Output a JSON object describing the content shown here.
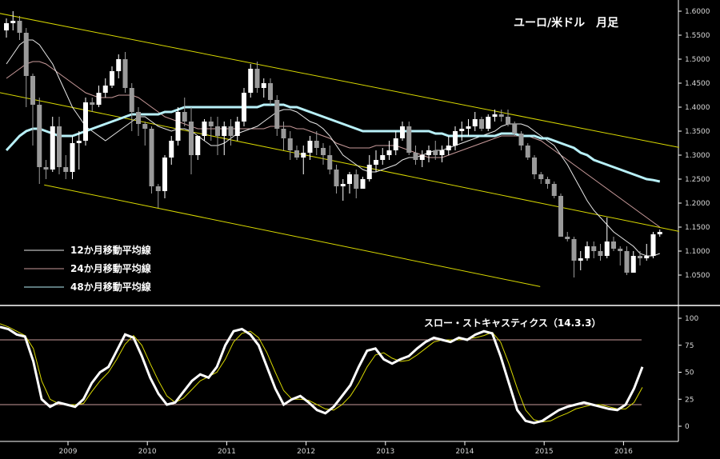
{
  "chart_data": [
    {
      "type": "candlestick",
      "title": "ユーロ/米ドル　月足",
      "ylim": [
        1.02,
        1.61
      ],
      "y_ticks": [
        "1.6000",
        "1.5500",
        "1.5000",
        "1.4500",
        "1.4000",
        "1.3500",
        "1.3000",
        "1.2500",
        "1.2000",
        "1.1500",
        "1.1000",
        "1.0500"
      ],
      "x_ticks": [
        "2009",
        "2010",
        "2011",
        "2012",
        "2013",
        "2014",
        "2015",
        "2016"
      ],
      "legend": [
        "12か月移動平均線",
        "24か月移動平均線",
        "48か月移動平均線"
      ],
      "colors": {
        "bull": "#ffffff",
        "bear": "#9a9a9a",
        "ma12": "#e8e8e8",
        "ma24": "#c89a9a",
        "ma48": "#b8f0f8",
        "channel": "#d8d800"
      },
      "channel_lines": [
        {
          "x1": 2008.0,
          "y1": 1.6,
          "x2": 2016.7,
          "y2": 1.316
        },
        {
          "x1": 2008.0,
          "y1": 1.435,
          "x2": 2016.7,
          "y2": 1.141
        },
        {
          "x1": 2008.7,
          "y1": 1.238,
          "x2": 2014.95,
          "y2": 1.026
        }
      ],
      "ohlc": [
        [
          1.56,
          1.585,
          1.545,
          1.575
        ],
        [
          1.575,
          1.6,
          1.56,
          1.58
        ],
        [
          1.58,
          1.59,
          1.54,
          1.555
        ],
        [
          1.555,
          1.565,
          1.4,
          1.465
        ],
        [
          1.465,
          1.47,
          1.32,
          1.405
        ],
        [
          1.405,
          1.42,
          1.24,
          1.275
        ],
        [
          1.275,
          1.29,
          1.25,
          1.27
        ],
        [
          1.27,
          1.38,
          1.265,
          1.36
        ],
        [
          1.36,
          1.38,
          1.26,
          1.275
        ],
        [
          1.275,
          1.3,
          1.25,
          1.265
        ],
        [
          1.265,
          1.34,
          1.25,
          1.325
        ],
        [
          1.325,
          1.35,
          1.27,
          1.33
        ],
        [
          1.33,
          1.42,
          1.32,
          1.41
        ],
        [
          1.41,
          1.42,
          1.39,
          1.405
        ],
        [
          1.405,
          1.445,
          1.4,
          1.43
        ],
        [
          1.43,
          1.46,
          1.42,
          1.445
        ],
        [
          1.445,
          1.485,
          1.44,
          1.475
        ],
        [
          1.475,
          1.51,
          1.46,
          1.5
        ],
        [
          1.5,
          1.515,
          1.43,
          1.44
        ],
        [
          1.44,
          1.45,
          1.35,
          1.39
        ],
        [
          1.39,
          1.4,
          1.34,
          1.365
        ],
        [
          1.365,
          1.37,
          1.32,
          1.355
        ],
        [
          1.355,
          1.36,
          1.22,
          1.235
        ],
        [
          1.235,
          1.24,
          1.19,
          1.225
        ],
        [
          1.225,
          1.3,
          1.21,
          1.295
        ],
        [
          1.295,
          1.34,
          1.28,
          1.33
        ],
        [
          1.33,
          1.4,
          1.32,
          1.39
        ],
        [
          1.39,
          1.42,
          1.36,
          1.37
        ],
        [
          1.37,
          1.4,
          1.26,
          1.3
        ],
        [
          1.3,
          1.34,
          1.29,
          1.34
        ],
        [
          1.34,
          1.375,
          1.33,
          1.37
        ],
        [
          1.37,
          1.38,
          1.33,
          1.36
        ],
        [
          1.36,
          1.38,
          1.3,
          1.34
        ],
        [
          1.34,
          1.37,
          1.3,
          1.36
        ],
        [
          1.36,
          1.375,
          1.32,
          1.34
        ],
        [
          1.34,
          1.38,
          1.33,
          1.37
        ],
        [
          1.37,
          1.44,
          1.36,
          1.43
        ],
        [
          1.43,
          1.49,
          1.42,
          1.48
        ],
        [
          1.48,
          1.495,
          1.43,
          1.44
        ],
        [
          1.44,
          1.46,
          1.42,
          1.45
        ],
        [
          1.45,
          1.46,
          1.405,
          1.415
        ],
        [
          1.415,
          1.425,
          1.34,
          1.355
        ],
        [
          1.355,
          1.37,
          1.31,
          1.335
        ],
        [
          1.335,
          1.35,
          1.29,
          1.31
        ],
        [
          1.31,
          1.32,
          1.29,
          1.295
        ],
        [
          1.295,
          1.32,
          1.26,
          1.305
        ],
        [
          1.305,
          1.34,
          1.29,
          1.33
        ],
        [
          1.33,
          1.35,
          1.3,
          1.315
        ],
        [
          1.315,
          1.325,
          1.28,
          1.3
        ],
        [
          1.3,
          1.32,
          1.26,
          1.27
        ],
        [
          1.27,
          1.28,
          1.22,
          1.235
        ],
        [
          1.235,
          1.25,
          1.205,
          1.24
        ],
        [
          1.24,
          1.265,
          1.22,
          1.26
        ],
        [
          1.26,
          1.27,
          1.21,
          1.23
        ],
        [
          1.23,
          1.255,
          1.23,
          1.25
        ],
        [
          1.25,
          1.3,
          1.245,
          1.28
        ],
        [
          1.28,
          1.31,
          1.265,
          1.29
        ],
        [
          1.29,
          1.315,
          1.28,
          1.3
        ],
        [
          1.3,
          1.33,
          1.29,
          1.31
        ],
        [
          1.31,
          1.35,
          1.3,
          1.335
        ],
        [
          1.335,
          1.37,
          1.33,
          1.36
        ],
        [
          1.36,
          1.37,
          1.3,
          1.305
        ],
        [
          1.305,
          1.32,
          1.28,
          1.29
        ],
        [
          1.29,
          1.31,
          1.275,
          1.3
        ],
        [
          1.3,
          1.32,
          1.285,
          1.31
        ],
        [
          1.31,
          1.33,
          1.29,
          1.3
        ],
        [
          1.3,
          1.32,
          1.285,
          1.31
        ],
        [
          1.31,
          1.34,
          1.3,
          1.32
        ],
        [
          1.32,
          1.36,
          1.31,
          1.35
        ],
        [
          1.35,
          1.37,
          1.33,
          1.355
        ],
        [
          1.355,
          1.375,
          1.34,
          1.36
        ],
        [
          1.36,
          1.39,
          1.35,
          1.375
        ],
        [
          1.375,
          1.38,
          1.35,
          1.355
        ],
        [
          1.355,
          1.385,
          1.35,
          1.38
        ],
        [
          1.38,
          1.395,
          1.37,
          1.385
        ],
        [
          1.385,
          1.395,
          1.37,
          1.38
        ],
        [
          1.38,
          1.395,
          1.36,
          1.365
        ],
        [
          1.365,
          1.37,
          1.34,
          1.345
        ],
        [
          1.345,
          1.35,
          1.31,
          1.32
        ],
        [
          1.32,
          1.325,
          1.29,
          1.295
        ],
        [
          1.295,
          1.3,
          1.25,
          1.26
        ],
        [
          1.26,
          1.265,
          1.24,
          1.25
        ],
        [
          1.25,
          1.255,
          1.23,
          1.24
        ],
        [
          1.24,
          1.245,
          1.21,
          1.215
        ],
        [
          1.215,
          1.22,
          1.13,
          1.13
        ],
        [
          1.13,
          1.14,
          1.12,
          1.125
        ],
        [
          1.125,
          1.13,
          1.045,
          1.08
        ],
        [
          1.08,
          1.1,
          1.06,
          1.085
        ],
        [
          1.085,
          1.12,
          1.08,
          1.11
        ],
        [
          1.11,
          1.12,
          1.085,
          1.1
        ],
        [
          1.1,
          1.115,
          1.08,
          1.09
        ],
        [
          1.09,
          1.17,
          1.085,
          1.12
        ],
        [
          1.12,
          1.13,
          1.1,
          1.105
        ],
        [
          1.105,
          1.11,
          1.07,
          1.1
        ],
        [
          1.1,
          1.11,
          1.05,
          1.055
        ],
        [
          1.055,
          1.1,
          1.055,
          1.09
        ],
        [
          1.09,
          1.1,
          1.07,
          1.085
        ],
        [
          1.085,
          1.115,
          1.08,
          1.09
        ],
        [
          1.09,
          1.14,
          1.085,
          1.135
        ],
        [
          1.135,
          1.145,
          1.13,
          1.14
        ]
      ],
      "ma12": [
        1.49,
        1.51,
        1.53,
        1.54,
        1.54,
        1.53,
        1.51,
        1.49,
        1.46,
        1.43,
        1.4,
        1.38,
        1.36,
        1.35,
        1.34,
        1.33,
        1.34,
        1.35,
        1.36,
        1.37,
        1.38,
        1.38,
        1.37,
        1.36,
        1.355,
        1.35,
        1.355,
        1.355,
        1.35,
        1.34,
        1.33,
        1.32,
        1.32,
        1.325,
        1.335,
        1.345,
        1.35,
        1.355,
        1.36,
        1.37,
        1.38,
        1.39,
        1.395,
        1.395,
        1.39,
        1.38,
        1.37,
        1.365,
        1.355,
        1.34,
        1.32,
        1.3,
        1.29,
        1.28,
        1.27,
        1.265,
        1.265,
        1.27,
        1.275,
        1.28,
        1.29,
        1.295,
        1.295,
        1.3,
        1.305,
        1.31,
        1.31,
        1.315,
        1.32,
        1.325,
        1.33,
        1.335,
        1.34,
        1.345,
        1.35,
        1.36,
        1.365,
        1.365,
        1.365,
        1.36,
        1.35,
        1.34,
        1.33,
        1.32,
        1.3,
        1.28,
        1.255,
        1.23,
        1.205,
        1.185,
        1.17,
        1.155,
        1.14,
        1.13,
        1.12,
        1.11,
        1.095,
        1.09,
        1.09,
        1.095
      ],
      "ma24": [
        1.46,
        1.47,
        1.48,
        1.49,
        1.495,
        1.495,
        1.49,
        1.48,
        1.47,
        1.46,
        1.45,
        1.44,
        1.43,
        1.425,
        1.42,
        1.42,
        1.42,
        1.425,
        1.425,
        1.425,
        1.42,
        1.41,
        1.4,
        1.39,
        1.38,
        1.375,
        1.37,
        1.365,
        1.36,
        1.355,
        1.355,
        1.355,
        1.355,
        1.355,
        1.355,
        1.355,
        1.355,
        1.355,
        1.355,
        1.355,
        1.36,
        1.36,
        1.36,
        1.36,
        1.355,
        1.355,
        1.35,
        1.345,
        1.34,
        1.335,
        1.325,
        1.32,
        1.315,
        1.315,
        1.315,
        1.315,
        1.32,
        1.32,
        1.32,
        1.32,
        1.315,
        1.31,
        1.305,
        1.3,
        1.295,
        1.295,
        1.295,
        1.3,
        1.305,
        1.31,
        1.315,
        1.32,
        1.325,
        1.33,
        1.335,
        1.34,
        1.34,
        1.34,
        1.34,
        1.34,
        1.335,
        1.33,
        1.32,
        1.31,
        1.3,
        1.29,
        1.28,
        1.27,
        1.26,
        1.25,
        1.24,
        1.23,
        1.22,
        1.21,
        1.2,
        1.19,
        1.18,
        1.17,
        1.16,
        1.15
      ],
      "ma48": [
        1.31,
        1.325,
        1.34,
        1.35,
        1.355,
        1.355,
        1.35,
        1.345,
        1.34,
        1.34,
        1.34,
        1.345,
        1.35,
        1.355,
        1.36,
        1.365,
        1.37,
        1.375,
        1.38,
        1.385,
        1.385,
        1.385,
        1.385,
        1.385,
        1.39,
        1.39,
        1.395,
        1.4,
        1.4,
        1.4,
        1.4,
        1.4,
        1.4,
        1.4,
        1.4,
        1.4,
        1.4,
        1.4,
        1.4,
        1.405,
        1.405,
        1.405,
        1.405,
        1.4,
        1.4,
        1.395,
        1.39,
        1.385,
        1.38,
        1.375,
        1.37,
        1.365,
        1.36,
        1.355,
        1.35,
        1.35,
        1.35,
        1.35,
        1.35,
        1.35,
        1.35,
        1.35,
        1.35,
        1.35,
        1.35,
        1.345,
        1.345,
        1.34,
        1.34,
        1.34,
        1.34,
        1.34,
        1.34,
        1.34,
        1.34,
        1.345,
        1.345,
        1.345,
        1.34,
        1.34,
        1.34,
        1.335,
        1.335,
        1.33,
        1.325,
        1.32,
        1.315,
        1.305,
        1.3,
        1.29,
        1.285,
        1.28,
        1.275,
        1.27,
        1.265,
        1.26,
        1.255,
        1.25,
        1.248,
        1.245
      ]
    },
    {
      "type": "line",
      "title": "スロー・ストキャスティクス（14.3.3）",
      "ylim": [
        -12,
        110
      ],
      "y_ticks": [
        "100",
        "75",
        "50",
        "25",
        "0"
      ],
      "levels": [
        80,
        20
      ],
      "series": [
        {
          "values": [
            92,
            90,
            85,
            83,
            60,
            25,
            18,
            22,
            20,
            18,
            25,
            40,
            50,
            55,
            70,
            85,
            82,
            65,
            45,
            30,
            20,
            22,
            32,
            42,
            48,
            45,
            55,
            75,
            88,
            90,
            85,
            75,
            55,
            35,
            20,
            25,
            28,
            22,
            15,
            12,
            18,
            28,
            38,
            55,
            70,
            72,
            62,
            58,
            62,
            65,
            72,
            78,
            82,
            80,
            78,
            82,
            80,
            85,
            88,
            86,
            65,
            40,
            15,
            5,
            3,
            5,
            10,
            15,
            18,
            20,
            22,
            20,
            18,
            16,
            15,
            20,
            35,
            55
          ]
        },
        {
          "values": [
            95,
            92,
            88,
            84,
            72,
            42,
            25,
            21,
            20,
            20,
            21,
            32,
            42,
            50,
            62,
            76,
            84,
            75,
            58,
            42,
            28,
            22,
            26,
            34,
            42,
            46,
            50,
            62,
            78,
            86,
            88,
            82,
            68,
            50,
            33,
            25,
            25,
            24,
            20,
            16,
            15,
            20,
            28,
            40,
            55,
            66,
            68,
            63,
            60,
            61,
            66,
            72,
            78,
            80,
            80,
            80,
            81,
            82,
            84,
            87,
            78,
            58,
            35,
            15,
            6,
            4,
            5,
            9,
            12,
            16,
            18,
            20,
            20,
            18,
            16,
            16,
            22,
            36
          ]
        }
      ]
    }
  ],
  "x_ticks": [
    "2009",
    "2010",
    "2011",
    "2012",
    "2013",
    "2014",
    "2015",
    "2016"
  ]
}
